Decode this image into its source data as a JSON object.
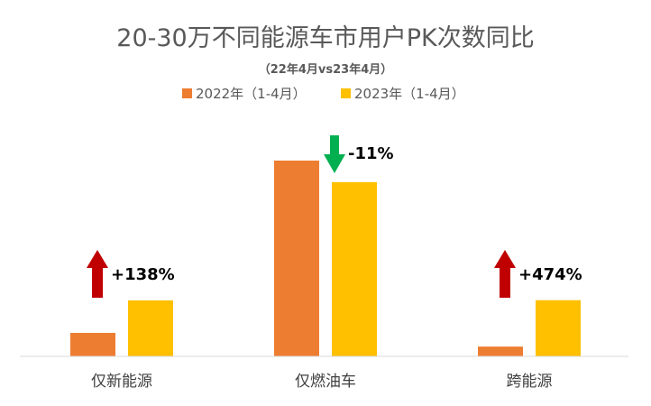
{
  "chart_data": {
    "type": "bar",
    "title": "20-30万不同能源车市用户PK次数同比",
    "subtitle": "（22年4月vs23年4月）",
    "categories": [
      "仅新能源",
      "仅燃油车",
      "跨能源"
    ],
    "series": [
      {
        "name": "2022年（1-4月）",
        "color": "#ED7D31",
        "values": [
          12,
          100,
          5
        ]
      },
      {
        "name": "2023年（1-4月）",
        "color": "#FFC000",
        "values": [
          28.6,
          89,
          28.7
        ]
      }
    ],
    "annotations": [
      {
        "category": "仅新能源",
        "text": "+138%",
        "direction": "up",
        "color": "#C00000"
      },
      {
        "category": "仅燃油车",
        "text": "-11%",
        "direction": "down",
        "color": "#00B050"
      },
      {
        "category": "跨能源",
        "text": "+474%",
        "direction": "up",
        "color": "#C00000"
      }
    ],
    "legend_position": "top",
    "ylim": [
      0,
      100
    ],
    "grid": false,
    "y_axis_visible": false
  }
}
